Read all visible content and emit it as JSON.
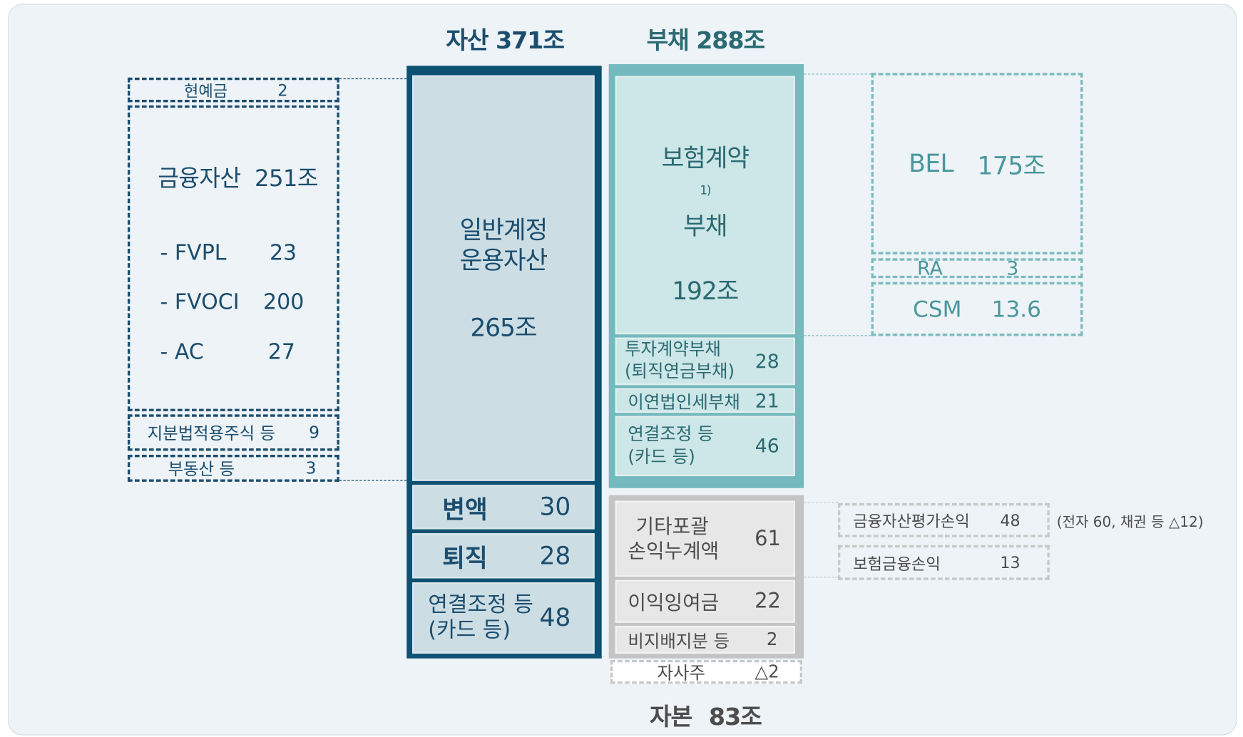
{
  "assets": {
    "title": "자산 371조",
    "general": {
      "lines": [
        "일반계정",
        "운용자산"
      ],
      "value": "265조"
    },
    "items": [
      {
        "lines": [
          "변액"
        ],
        "value": "30"
      },
      {
        "lines": [
          "퇴직"
        ],
        "value": "28"
      },
      {
        "lines": [
          "연결조정 등",
          "(카드 등)"
        ],
        "value": "48"
      }
    ],
    "detail": {
      "cash": {
        "label": "현예금",
        "value": "2"
      },
      "financial": {
        "label": "금융자산",
        "value": "251조",
        "items": [
          {
            "label": "- FVPL",
            "value": "23"
          },
          {
            "label": "- FVOCI",
            "value": "200"
          },
          {
            "label": "- AC",
            "value": "27"
          }
        ]
      },
      "equity_method": {
        "label": "지분법적용주식 등",
        "value": "9"
      },
      "real_estate": {
        "label": "부동산 등",
        "value": "3"
      }
    }
  },
  "liabilities": {
    "title": "부채 288조",
    "insurance": {
      "lines": [
        "보험계약",
        "부채"
      ],
      "note": "1)",
      "value": "192조"
    },
    "items": [
      {
        "lines": [
          "투자계약부채",
          "(퇴직연금부채)"
        ],
        "value": "28"
      },
      {
        "lines": [
          "이연법인세부채"
        ],
        "value": "21"
      },
      {
        "lines": [
          "연결조정 등",
          "(카드 등)"
        ],
        "value": "46"
      }
    ],
    "detail": [
      {
        "label": "BEL",
        "value": "175조"
      },
      {
        "label": "RA",
        "value": "3"
      },
      {
        "label": "CSM",
        "value": "13.6"
      }
    ]
  },
  "equity": {
    "title": "자본",
    "value": "83조",
    "items": [
      {
        "lines": [
          "기타포괄",
          "손익누계액"
        ],
        "value": "61"
      },
      {
        "lines": [
          "이익잉여금"
        ],
        "value": "22"
      },
      {
        "lines": [
          "비지배지분 등"
        ],
        "value": "2"
      }
    ],
    "treasury": {
      "label": "자사주",
      "value": "△2"
    },
    "detail": [
      {
        "label": "금융자산평가손익",
        "value": "48",
        "note": "(전자 60, 채권 등 △12)"
      },
      {
        "label": "보험금융손익",
        "value": "13"
      }
    ]
  }
}
